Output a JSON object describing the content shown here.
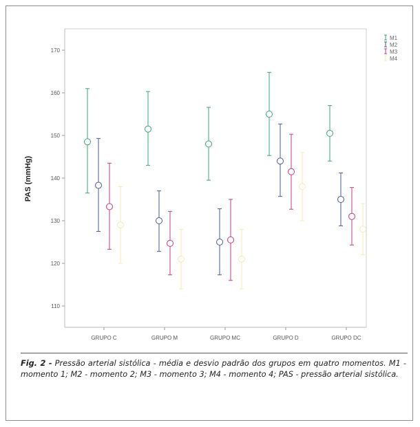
{
  "chart_data": {
    "type": "scatter",
    "title": "",
    "ylabel": "PAS (mmHg)",
    "xlabel": "",
    "ylim": [
      105,
      175
    ],
    "yticks": [
      110,
      120,
      130,
      140,
      150,
      160,
      170
    ],
    "categories": [
      "GRUPO C",
      "GRUPO M",
      "GRUPO MC",
      "GRUPO D",
      "GRUPO DC"
    ],
    "grid": false,
    "legend_position": "top-right",
    "series": [
      {
        "name": "M1",
        "color": "#3aa673",
        "mean": [
          148.5,
          151.5,
          148,
          155,
          150.5
        ],
        "upper": [
          161,
          160.3,
          156.6,
          164.8,
          157
        ],
        "lower": [
          136.5,
          143,
          139.5,
          145.3,
          144
        ]
      },
      {
        "name": "M2",
        "color": "#4a5a98",
        "mean": [
          138.3,
          130,
          125,
          144,
          135
        ],
        "upper": [
          149.3,
          137,
          132.8,
          152.7,
          141.2
        ],
        "lower": [
          127.5,
          122.8,
          117.3,
          135.7,
          128.8
        ]
      },
      {
        "name": "M3",
        "color": "#c23d7f",
        "mean": [
          133.3,
          124.7,
          125.5,
          141.5,
          131
        ],
        "upper": [
          143.5,
          132.2,
          135,
          150.3,
          137.8
        ],
        "lower": [
          123.3,
          117.3,
          116,
          132.7,
          124.3
        ]
      },
      {
        "name": "M4",
        "color": "#f3ebb0",
        "mean": [
          129,
          121,
          121,
          138,
          128
        ],
        "upper": [
          138,
          128,
          128,
          146,
          134
        ],
        "lower": [
          120,
          114,
          114,
          130,
          122
        ]
      }
    ]
  },
  "caption": {
    "label": "Fig. 2 -",
    "text": " Pressão arterial sistólica - média e desvio padrão dos grupos em quatro momentos. M1 - momento 1; M2 - momento 2; M3 - momento 3; M4 - momento 4; PAS - pressão arterial sistólica."
  }
}
